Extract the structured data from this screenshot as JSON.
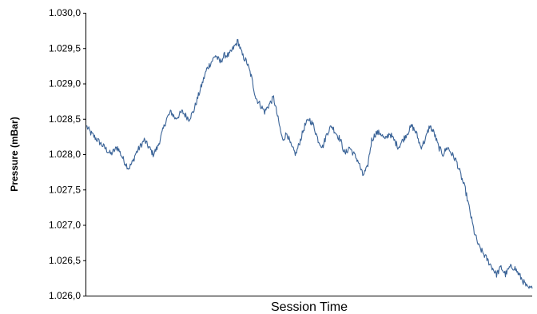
{
  "chart_data": {
    "type": "line",
    "title": "",
    "xlabel": "Session Time",
    "ylabel": "Pressure (mBar)",
    "ylim": [
      1.026,
      1.03
    ],
    "y_ticks": [
      1.026,
      1.0265,
      1.027,
      1.0275,
      1.028,
      1.0285,
      1.029,
      1.0295,
      1.03
    ],
    "y_tick_labels": [
      "1.026,0",
      "1.026,5",
      "1.027,0",
      "1.027,5",
      "1.028,0",
      "1.028,5",
      "1.029,0",
      "1.029,5",
      "1.030,0"
    ],
    "x_ticks_shown": false,
    "grid": false,
    "legend": "none",
    "line_color": "#3a6397",
    "series": [
      {
        "x": [
          0,
          0.01,
          0.025,
          0.04,
          0.055,
          0.07,
          0.085,
          0.095,
          0.105,
          0.11,
          0.12,
          0.13,
          0.14,
          0.15,
          0.16,
          0.17,
          0.18,
          0.19,
          0.2,
          0.215,
          0.23,
          0.24,
          0.25,
          0.26,
          0.27,
          0.28,
          0.29,
          0.3,
          0.31,
          0.32,
          0.33,
          0.34,
          0.35,
          0.36,
          0.37,
          0.38,
          0.39,
          0.4,
          0.41,
          0.42,
          0.43,
          0.44,
          0.45,
          0.46,
          0.47,
          0.48,
          0.49,
          0.5,
          0.51,
          0.52,
          0.53,
          0.54,
          0.55,
          0.56,
          0.57,
          0.58,
          0.59,
          0.6,
          0.61,
          0.62,
          0.63,
          0.64,
          0.65,
          0.66,
          0.67,
          0.68,
          0.69,
          0.7,
          0.71,
          0.72,
          0.73,
          0.74,
          0.75,
          0.76,
          0.77,
          0.78,
          0.79,
          0.8,
          0.81,
          0.82,
          0.83,
          0.84,
          0.85,
          0.86,
          0.87,
          0.88,
          0.89,
          0.9,
          0.91,
          0.92,
          0.93,
          0.94,
          0.95,
          0.96,
          0.97,
          0.98,
          0.99,
          1.0
        ],
        "y": [
          1.0284,
          1.0283,
          1.0282,
          1.0281,
          1.028,
          1.0281,
          1.0279,
          1.0278,
          1.0279,
          1.028,
          1.0281,
          1.0282,
          1.0281,
          1.028,
          1.0281,
          1.0283,
          1.0285,
          1.0286,
          1.0285,
          1.0286,
          1.0285,
          1.0286,
          1.0288,
          1.029,
          1.0292,
          1.0293,
          1.0294,
          1.0293,
          1.0294,
          1.0294,
          1.0295,
          1.0296,
          1.0294,
          1.0293,
          1.0291,
          1.0288,
          1.0287,
          1.0286,
          1.0287,
          1.0288,
          1.0285,
          1.0282,
          1.0283,
          1.0281,
          1.028,
          1.0282,
          1.0284,
          1.0285,
          1.0284,
          1.0282,
          1.0281,
          1.0283,
          1.0284,
          1.0283,
          1.0282,
          1.028,
          1.0281,
          1.028,
          1.0279,
          1.0277,
          1.0278,
          1.0282,
          1.0283,
          1.0283,
          1.0282,
          1.0283,
          1.0282,
          1.0281,
          1.0282,
          1.0283,
          1.0284,
          1.0283,
          1.0281,
          1.0282,
          1.0284,
          1.0283,
          1.0281,
          1.028,
          1.0281,
          1.028,
          1.0279,
          1.0277,
          1.0275,
          1.0272,
          1.0269,
          1.0267,
          1.0266,
          1.0265,
          1.0264,
          1.0263,
          1.0264,
          1.0263,
          1.0264,
          1.0264,
          1.0263,
          1.0262,
          1.0261,
          1.0261
        ]
      }
    ]
  }
}
